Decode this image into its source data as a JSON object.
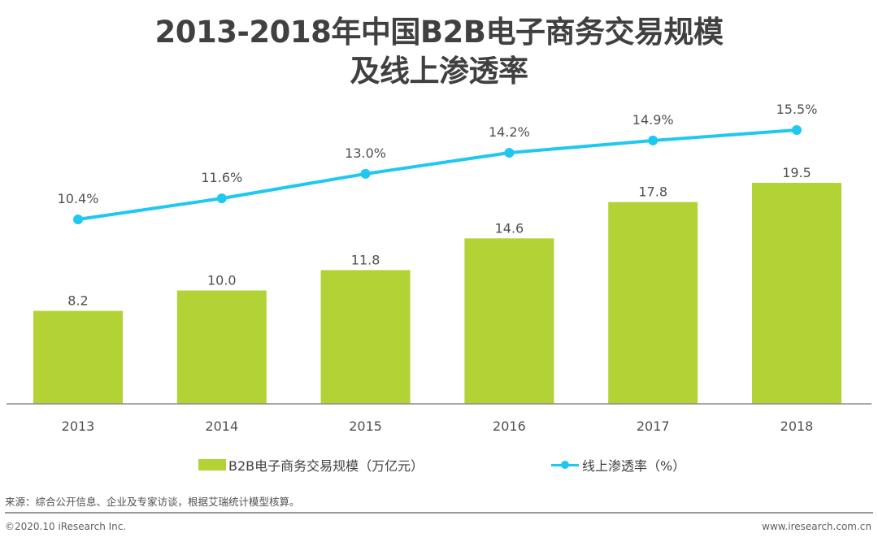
{
  "title_line1": "2013-2018年中国B2B电子商务交易规模",
  "title_line2": "及线上渗透率",
  "chart_data": {
    "type": "bar+line",
    "title": "2013-2018年中国B2B电子商务交易规模及线上渗透率",
    "categories": [
      "2013",
      "2014",
      "2015",
      "2016",
      "2017",
      "2018"
    ],
    "series": [
      {
        "name": "B2B电子商务交易规模（万亿元）",
        "type": "bar",
        "color": "#b2d235",
        "values": [
          8.2,
          10.0,
          11.8,
          14.6,
          17.8,
          19.5
        ],
        "labels": [
          "8.2",
          "10.0",
          "11.8",
          "14.6",
          "17.8",
          "19.5"
        ]
      },
      {
        "name": "线上渗透率（%）",
        "type": "line",
        "color": "#1ec8ee",
        "values": [
          10.4,
          11.6,
          13.0,
          14.2,
          14.9,
          15.5
        ],
        "labels": [
          "10.4%",
          "11.6%",
          "13.0%",
          "14.2%",
          "14.9%",
          "15.5%"
        ]
      }
    ],
    "xlabel": "",
    "ylabel": "",
    "grid": false,
    "legend_position": "bottom"
  },
  "legend": {
    "bar_label": "B2B电子商务交易规模（万亿元）",
    "line_label": "线上渗透率（%）"
  },
  "footer": {
    "source": "来源：综合公开信息、企业及专家访谈，根据艾瑞统计模型核算。",
    "copyright": "©2020.10 iResearch Inc.",
    "website": "www.iresearch.com.cn"
  }
}
